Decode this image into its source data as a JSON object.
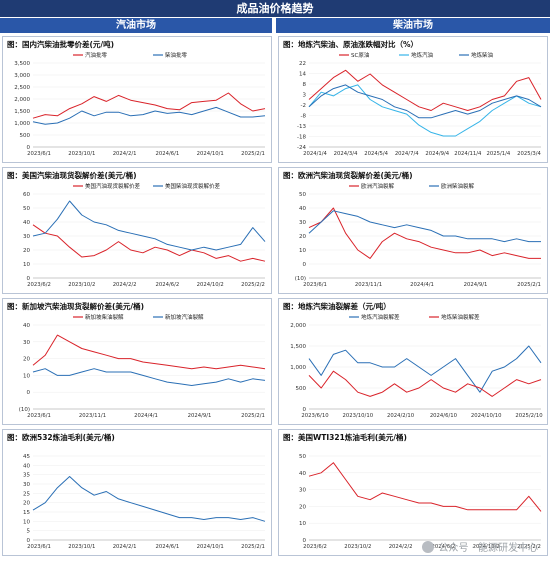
{
  "title": "成品油价格趋势",
  "gasoline_header": "汽油市场",
  "diesel_header": "柴油市场",
  "watermark": "公众号 · 能源研发中心",
  "chart_data": [
    {
      "type": "line",
      "title": "图：国内汽柴油批零价差(元/吨)",
      "ylim": [
        0,
        3500
      ],
      "yticks": [
        "0",
        "500",
        "1,000",
        "1,500",
        "2,000",
        "2,500",
        "3,000",
        "3,500"
      ],
      "xticks": [
        "2023/6/1",
        "2023/10/1",
        "2024/2/1",
        "2024/6/1",
        "2024/10/1",
        "2025/2/1"
      ],
      "legend": "top-center",
      "series": [
        {
          "name": "汽油批零",
          "color": "#d9232a",
          "values": [
            1200,
            1350,
            1300,
            1600,
            1800,
            2100,
            1900,
            2150,
            1950,
            1850,
            1750,
            1600,
            1550,
            1850,
            1900,
            1950,
            2250,
            1800,
            1500,
            1600
          ]
        },
        {
          "name": "柴油批零",
          "color": "#2a6fb5",
          "values": [
            1050,
            950,
            1000,
            1200,
            1500,
            1300,
            1450,
            1450,
            1300,
            1350,
            1500,
            1400,
            1450,
            1350,
            1500,
            1650,
            1450,
            1250,
            1250,
            1300
          ]
        }
      ]
    },
    {
      "type": "line",
      "title": "图：地炼汽柴油、原油涨跌幅对比（%）",
      "ylim": [
        -24,
        22
      ],
      "yticks": [
        "-24",
        "-18",
        "-13",
        "-8",
        "-2",
        "3",
        "8",
        "14",
        "22"
      ],
      "xticks": [
        "2024/1/4",
        "2024/3/4",
        "2024/5/4",
        "2024/7/4",
        "2024/9/4",
        "2024/11/4",
        "2025/1/4",
        "2025/3/4"
      ],
      "legend": "top-center",
      "series": [
        {
          "name": "SC原油",
          "color": "#d9232a",
          "values": [
            2,
            8,
            14,
            18,
            12,
            16,
            10,
            6,
            2,
            -2,
            -4,
            0,
            -2,
            -4,
            -2,
            2,
            4,
            12,
            14,
            2
          ]
        },
        {
          "name": "地炼汽油",
          "color": "#35b4e8",
          "values": [
            -2,
            6,
            4,
            8,
            10,
            2,
            -2,
            -4,
            -6,
            -12,
            -16,
            -18,
            -18,
            -14,
            -10,
            -4,
            0,
            4,
            0,
            -2
          ]
        },
        {
          "name": "地炼柴油",
          "color": "#2a6fb5",
          "values": [
            -2,
            4,
            8,
            10,
            6,
            4,
            2,
            -2,
            -4,
            -8,
            -8,
            -6,
            -4,
            -6,
            -4,
            0,
            2,
            4,
            2,
            -2
          ]
        }
      ]
    },
    {
      "type": "line",
      "title": "图：美国汽柴油现货裂解价差(美元/桶)",
      "ylim": [
        0,
        60
      ],
      "yticks": [
        "0",
        "10",
        "20",
        "30",
        "40",
        "50",
        "60"
      ],
      "xticks": [
        "2023/6/2",
        "2023/10/2",
        "2024/2/2",
        "2024/6/2",
        "2024/10/2",
        "2025/2/2"
      ],
      "legend": "top-center",
      "series": [
        {
          "name": "美国汽油现货裂解价差",
          "color": "#d9232a",
          "values": [
            38,
            32,
            30,
            22,
            15,
            16,
            20,
            26,
            20,
            18,
            22,
            20,
            16,
            20,
            18,
            14,
            16,
            12,
            14,
            12
          ]
        },
        {
          "name": "美国柴油现货裂解价差",
          "color": "#2a6fb5",
          "values": [
            30,
            32,
            42,
            55,
            45,
            40,
            38,
            34,
            32,
            30,
            28,
            24,
            22,
            20,
            22,
            20,
            22,
            24,
            36,
            26
          ]
        }
      ]
    },
    {
      "type": "line",
      "title": "图：欧洲汽柴油现货裂解价差(美元/桶)",
      "ylim": [
        -10,
        50
      ],
      "yticks": [
        "(10)",
        "0",
        "10",
        "20",
        "30",
        "40",
        "50"
      ],
      "xticks": [
        "2023/6/1",
        "2023/11/1",
        "2024/4/1",
        "2024/9/1",
        "2025/2/1"
      ],
      "legend": "top-center",
      "series": [
        {
          "name": "欧洲汽油裂解",
          "color": "#d9232a",
          "values": [
            26,
            30,
            40,
            22,
            10,
            4,
            16,
            22,
            18,
            16,
            12,
            10,
            8,
            8,
            10,
            6,
            8,
            6,
            4,
            4
          ]
        },
        {
          "name": "欧洲柴油裂解",
          "color": "#2a6fb5",
          "values": [
            22,
            30,
            38,
            36,
            34,
            30,
            28,
            26,
            28,
            26,
            24,
            20,
            20,
            18,
            18,
            18,
            16,
            18,
            16,
            16
          ]
        }
      ]
    },
    {
      "type": "line",
      "title": "图：新加坡汽柴油现货裂解价差(美元/桶)",
      "ylim": [
        -10,
        40
      ],
      "yticks": [
        "(10)",
        "0",
        "10",
        "20",
        "30",
        "40"
      ],
      "xticks": [
        "2023/6/1",
        "2023/11/1",
        "2024/4/1",
        "2024/9/1",
        "2025/2/1"
      ],
      "legend": "top-center",
      "series": [
        {
          "name": "新加坡柴油裂解",
          "color": "#d9232a",
          "values": [
            16,
            22,
            34,
            30,
            26,
            24,
            22,
            20,
            20,
            18,
            17,
            16,
            15,
            14,
            15,
            14,
            15,
            16,
            15,
            14
          ]
        },
        {
          "name": "新加坡汽油裂解",
          "color": "#2a6fb5",
          "values": [
            12,
            14,
            10,
            10,
            12,
            14,
            12,
            12,
            12,
            10,
            8,
            6,
            5,
            4,
            5,
            6,
            8,
            6,
            8,
            7
          ]
        }
      ]
    },
    {
      "type": "line",
      "title": "图：地炼汽柴油裂解差（元/吨）",
      "ylim": [
        0,
        2000
      ],
      "yticks": [
        "0",
        "500",
        "1,000",
        "1,500",
        "2,000"
      ],
      "xticks": [
        "2023/6/10",
        "2023/10/10",
        "2024/2/10",
        "2024/6/10",
        "2024/10/10",
        "2025/2/10"
      ],
      "legend": "top-center",
      "series": [
        {
          "name": "地炼汽油裂解差",
          "color": "#2a6fb5",
          "values": [
            1200,
            800,
            1300,
            1400,
            1100,
            1100,
            1000,
            1000,
            1200,
            1000,
            800,
            1000,
            1200,
            800,
            400,
            900,
            1000,
            1200,
            1500,
            1100
          ]
        },
        {
          "name": "地炼柴油裂解差",
          "color": "#d9232a",
          "values": [
            800,
            500,
            900,
            700,
            400,
            300,
            400,
            600,
            400,
            500,
            700,
            500,
            400,
            600,
            500,
            300,
            500,
            700,
            600,
            700
          ]
        }
      ]
    },
    {
      "type": "line",
      "title": "图：欧洲532炼油毛利(美元/桶)",
      "ylim": [
        0,
        45
      ],
      "yticks": [
        "0",
        "5",
        "10",
        "15",
        "20",
        "25",
        "30",
        "35",
        "40",
        "45"
      ],
      "xticks": [
        "2023/6/1",
        "2023/10/1",
        "2024/2/1",
        "2024/6/1",
        "2024/10/1",
        "2025/2/1"
      ],
      "series": [
        {
          "name": "",
          "color": "#2a6fb5",
          "values": [
            16,
            20,
            28,
            34,
            28,
            24,
            26,
            22,
            20,
            18,
            16,
            14,
            12,
            12,
            11,
            12,
            12,
            11,
            12,
            10
          ]
        }
      ]
    },
    {
      "type": "line",
      "title": "图：美国WTI321炼油毛利(美元/桶)",
      "ylim": [
        0,
        50
      ],
      "yticks": [
        "0",
        "10",
        "20",
        "30",
        "40",
        "50"
      ],
      "xticks": [
        "2023/6/2",
        "2023/10/2",
        "2024/2/2",
        "2024/6/2",
        "2024/10/2",
        "2025/2/2"
      ],
      "series": [
        {
          "name": "",
          "color": "#d9232a",
          "values": [
            38,
            40,
            46,
            36,
            26,
            24,
            28,
            26,
            24,
            22,
            22,
            20,
            20,
            18,
            18,
            18,
            18,
            18,
            26,
            17
          ]
        }
      ]
    }
  ]
}
